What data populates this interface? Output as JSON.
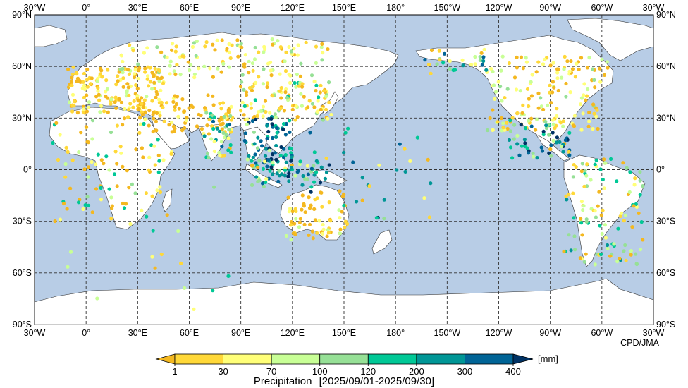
{
  "map": {
    "ocean_color": "#b8cde6",
    "land_color": "#ffffff",
    "lon_ticks_top": [
      "30°W",
      "0°",
      "30°E",
      "60°E",
      "90°E",
      "120°E",
      "150°E",
      "180°",
      "150°W",
      "120°W",
      "90°W",
      "60°W",
      "30°W"
    ],
    "lon_ticks_bottom": [
      "30°W",
      "0°",
      "30°E",
      "60°E",
      "90°E",
      "120°E",
      "150°E",
      "180°",
      "150°W",
      "120°W",
      "90°W",
      "60°W",
      "30°W"
    ],
    "lat_ticks_left": [
      "90°N",
      "60°N",
      "30°N",
      "0°",
      "30°S",
      "60°S",
      "90°S"
    ],
    "lat_ticks_right": [
      "90°N",
      "60°N",
      "30°N",
      "0°",
      "30°S",
      "60°S",
      "90°S"
    ],
    "credit": "CPD/JMA"
  },
  "legend": {
    "unit": "[mm]",
    "title": "Precipitation",
    "period": "[2025/09/01-2025/09/30]",
    "boundaries": [
      "1",
      "30",
      "70",
      "100",
      "120",
      "200",
      "300",
      "400"
    ],
    "colors": [
      "#f4b820",
      "#ffd838",
      "#ffff78",
      "#c8ff96",
      "#96e096",
      "#00c896",
      "#009696",
      "#006496",
      "#003264"
    ]
  }
}
